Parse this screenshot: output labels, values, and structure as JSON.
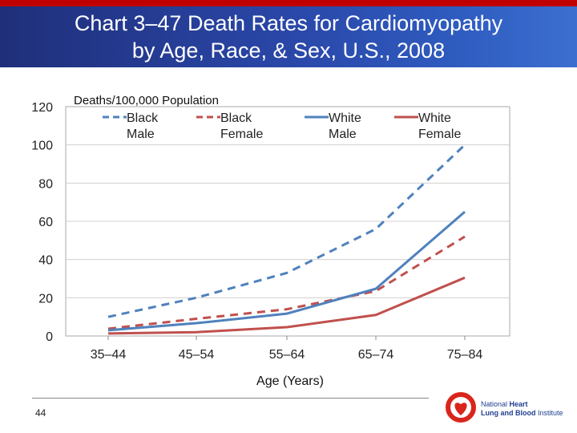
{
  "slide": {
    "title_line1": "Chart 3–47 Death Rates for Cardiomyopathy",
    "title_line2": "by Age, Race, & Sex, U.S., 2008",
    "page_number": "44",
    "logo": {
      "line1_prefix": "National ",
      "line1_bold": "Heart",
      "line2_bold": "Lung and Blood ",
      "line2_suffix": "Institute"
    },
    "colors": {
      "header": "#2a47a8",
      "top_bar": "#c00000"
    }
  },
  "chart_data": {
    "type": "line",
    "title": "",
    "ylabel": "Deaths/100,000 Population",
    "xlabel": "Age (Years)",
    "categories": [
      "35–44",
      "45–54",
      "55–64",
      "65–74",
      "75–84"
    ],
    "ylim": [
      0,
      120
    ],
    "yticks": [
      0,
      20,
      40,
      60,
      80,
      100,
      120
    ],
    "grid": true,
    "legend_placement": "top",
    "series": [
      {
        "name": "Black Male",
        "label_line1": "Black",
        "label_line2": "Male",
        "color": "#4f81bd",
        "dash": true,
        "values": [
          10,
          20,
          33,
          56,
          100
        ]
      },
      {
        "name": "Black Female",
        "label_line1": "Black",
        "label_line2": "Female",
        "color": "#c0504d",
        "dash": true,
        "values": [
          3.8,
          9,
          14,
          23.5,
          52
        ]
      },
      {
        "name": "White Male",
        "label_line1": "White",
        "label_line2": "Male",
        "color": "#4f81bd",
        "dash": false,
        "values": [
          3,
          6.7,
          11.7,
          24.7,
          65
        ]
      },
      {
        "name": "White Female",
        "label_line1": "White",
        "label_line2": "Female",
        "color": "#c0504d",
        "dash": false,
        "values": [
          1.3,
          2,
          4.6,
          11,
          30.5
        ]
      }
    ]
  }
}
